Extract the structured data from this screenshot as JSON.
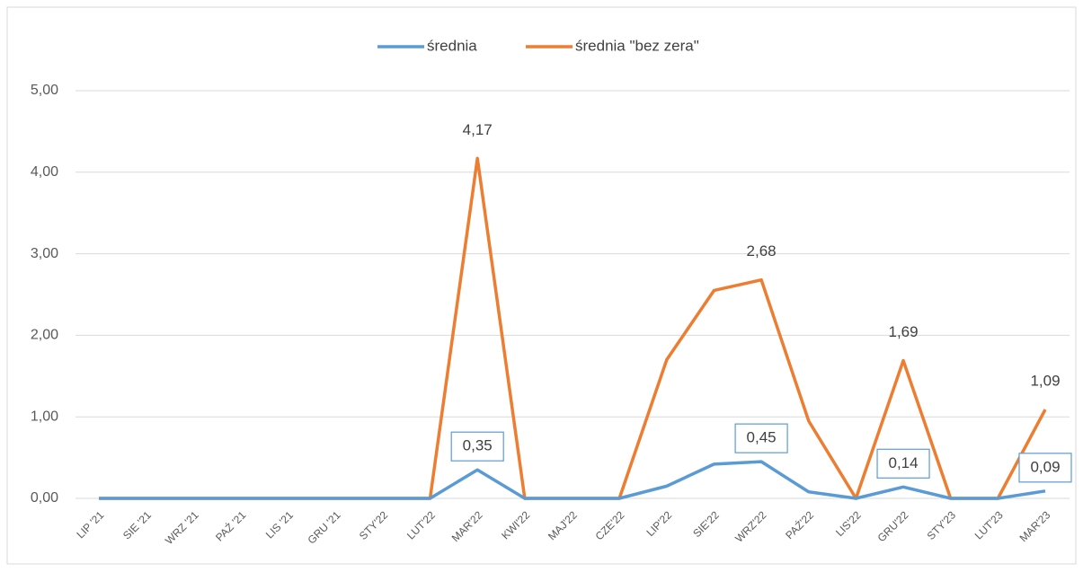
{
  "chart_data": {
    "type": "line",
    "categories": [
      "LIP '21",
      "SIE '21",
      "WRZ '21",
      "PAŹ '21",
      "LIS '21",
      "GRU '21",
      "STY'22",
      "LUT'22",
      "MAR'22",
      "KWI'22",
      "MAJ'22",
      "CZE'22",
      "LIP'22",
      "SIE'22",
      "WRZ'22",
      "PAŹ'22",
      "LIS'22",
      "GRU'22",
      "STY'23",
      "LUT'23",
      "MAR'23"
    ],
    "series": [
      {
        "name": "średnia",
        "color": "#5b9bd5",
        "values": [
          0,
          0,
          0,
          0,
          0,
          0,
          0,
          0,
          0.35,
          0,
          0,
          0,
          0.15,
          0.42,
          0.45,
          0.08,
          0,
          0.14,
          0,
          0,
          0.09
        ],
        "value_labels": [
          null,
          null,
          null,
          null,
          null,
          null,
          null,
          null,
          "0,35",
          null,
          null,
          null,
          null,
          null,
          "0,45",
          null,
          null,
          "0,14",
          null,
          null,
          "0,09"
        ]
      },
      {
        "name": "średnia \"bez zera\"",
        "color": "#ed7d31",
        "values": [
          0,
          0,
          0,
          0,
          0,
          0,
          0,
          0,
          4.17,
          0,
          0,
          0,
          1.7,
          2.55,
          2.68,
          0.95,
          0,
          1.69,
          0,
          0,
          1.09
        ],
        "value_labels": [
          null,
          null,
          null,
          null,
          null,
          null,
          null,
          null,
          "4,17",
          null,
          null,
          null,
          null,
          null,
          "2,68",
          null,
          null,
          "1,69",
          null,
          null,
          "1,09"
        ]
      }
    ],
    "ylim": [
      0,
      5
    ],
    "yticks": [
      {
        "value": 0,
        "label": "0,00"
      },
      {
        "value": 1,
        "label": "1,00"
      },
      {
        "value": 2,
        "label": "2,00"
      },
      {
        "value": 3,
        "label": "3,00"
      },
      {
        "value": 4,
        "label": "4,00"
      },
      {
        "value": 5,
        "label": "5,00"
      }
    ],
    "grid": true,
    "legend": "top"
  }
}
